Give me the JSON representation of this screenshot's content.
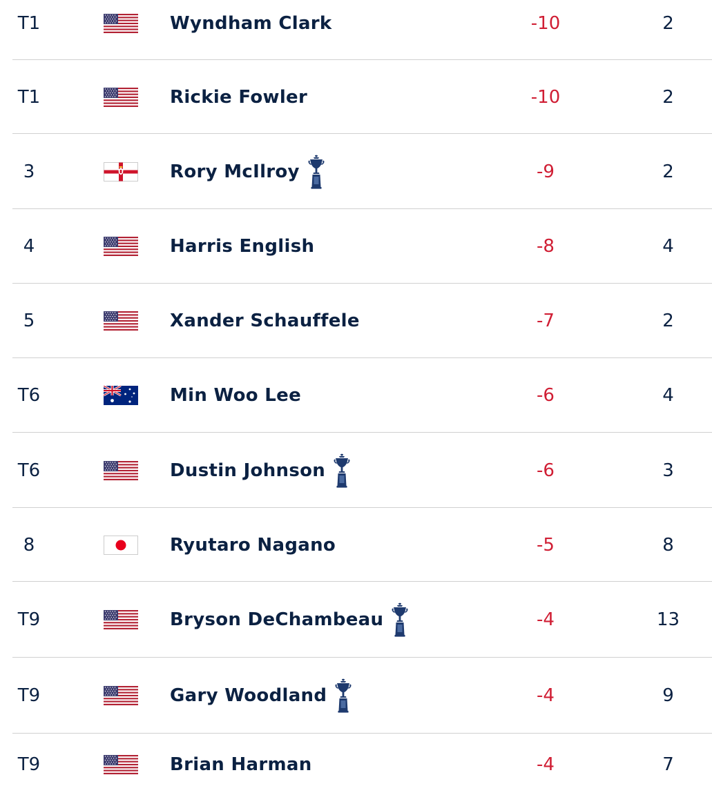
{
  "leaderboard": {
    "rows": [
      {
        "position": "T1",
        "country_flag": "usa-flag-icon",
        "player": "Wyndham Clark",
        "past_champion": false,
        "score": "-10",
        "thru": "2"
      },
      {
        "position": "T1",
        "country_flag": "usa-flag-icon",
        "player": "Rickie Fowler",
        "past_champion": false,
        "score": "-10",
        "thru": "2"
      },
      {
        "position": "3",
        "country_flag": "northern-ireland-flag-icon",
        "player": "Rory McIlroy",
        "past_champion": true,
        "score": "-9",
        "thru": "2"
      },
      {
        "position": "4",
        "country_flag": "usa-flag-icon",
        "player": "Harris English",
        "past_champion": false,
        "score": "-8",
        "thru": "4"
      },
      {
        "position": "5",
        "country_flag": "usa-flag-icon",
        "player": "Xander Schauffele",
        "past_champion": false,
        "score": "-7",
        "thru": "2"
      },
      {
        "position": "T6",
        "country_flag": "australia-flag-icon",
        "player": "Min Woo Lee",
        "past_champion": false,
        "score": "-6",
        "thru": "4"
      },
      {
        "position": "T6",
        "country_flag": "usa-flag-icon",
        "player": "Dustin Johnson",
        "past_champion": true,
        "score": "-6",
        "thru": "3"
      },
      {
        "position": "8",
        "country_flag": "japan-flag-icon",
        "player": "Ryutaro Nagano",
        "past_champion": false,
        "score": "-5",
        "thru": "8"
      },
      {
        "position": "T9",
        "country_flag": "usa-flag-icon",
        "player": "Bryson DeChambeau",
        "past_champion": true,
        "score": "-4",
        "thru": "13"
      },
      {
        "position": "T9",
        "country_flag": "usa-flag-icon",
        "player": "Gary Woodland",
        "past_champion": true,
        "score": "-4",
        "thru": "9"
      },
      {
        "position": "T9",
        "country_flag": "usa-flag-icon",
        "player": "Brian Harman",
        "past_champion": false,
        "score": "-4",
        "thru": "7"
      }
    ]
  },
  "colors": {
    "text": "#0b2142",
    "under_par": "#d01e34",
    "divider": "#d0d0d0",
    "trophy": "#1e3a6e"
  }
}
